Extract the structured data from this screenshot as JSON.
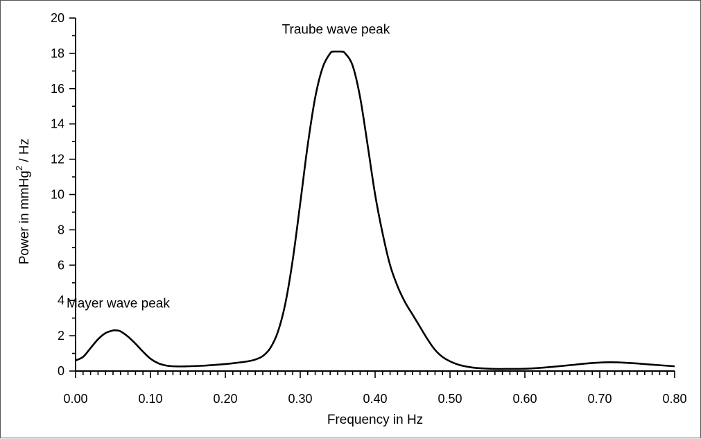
{
  "chart_data": {
    "type": "line",
    "title": "",
    "xlabel": "Frequency in Hz",
    "ylabel": "Power in mmHg",
    "ylabel_sup": "2",
    "ylabel_suffix": " / Hz",
    "xlim": [
      0,
      0.8
    ],
    "ylim": [
      0,
      20
    ],
    "xticks": [
      "0.00",
      "0.10",
      "0.20",
      "0.30",
      "0.40",
      "0.50",
      "0.60",
      "0.70",
      "0.80"
    ],
    "yticks": [
      "0",
      "2",
      "4",
      "6",
      "8",
      "10",
      "12",
      "14",
      "16",
      "18",
      "20"
    ],
    "grid": false,
    "legend": "none",
    "series": [
      {
        "x": [
          0.0,
          0.01,
          0.02,
          0.03,
          0.04,
          0.05,
          0.055,
          0.06,
          0.07,
          0.08,
          0.09,
          0.1,
          0.11,
          0.12,
          0.13,
          0.14,
          0.15,
          0.17,
          0.19,
          0.21,
          0.23,
          0.24,
          0.25,
          0.26,
          0.27,
          0.28,
          0.29,
          0.3,
          0.31,
          0.32,
          0.33,
          0.34,
          0.345,
          0.35,
          0.355,
          0.36,
          0.37,
          0.38,
          0.39,
          0.4,
          0.41,
          0.42,
          0.43,
          0.44,
          0.45,
          0.46,
          0.47,
          0.48,
          0.49,
          0.5,
          0.51,
          0.52,
          0.53,
          0.54,
          0.56,
          0.58,
          0.6,
          0.62,
          0.64,
          0.66,
          0.68,
          0.7,
          0.715,
          0.73,
          0.75,
          0.77,
          0.8
        ],
        "y": [
          0.6,
          0.8,
          1.3,
          1.8,
          2.15,
          2.3,
          2.3,
          2.25,
          1.95,
          1.55,
          1.1,
          0.7,
          0.45,
          0.32,
          0.27,
          0.26,
          0.27,
          0.3,
          0.36,
          0.44,
          0.55,
          0.65,
          0.85,
          1.3,
          2.2,
          3.8,
          6.3,
          9.5,
          12.8,
          15.5,
          17.2,
          18.0,
          18.1,
          18.1,
          18.1,
          18.0,
          17.3,
          15.5,
          12.8,
          10.0,
          7.8,
          6.0,
          4.8,
          3.9,
          3.2,
          2.5,
          1.8,
          1.2,
          0.8,
          0.55,
          0.38,
          0.27,
          0.2,
          0.16,
          0.12,
          0.12,
          0.13,
          0.18,
          0.25,
          0.33,
          0.42,
          0.48,
          0.5,
          0.48,
          0.43,
          0.36,
          0.27
        ],
        "color": "#000000"
      }
    ],
    "annotations": [
      {
        "text": "Traube wave peak",
        "x": 0.355,
        "y": 18.1
      },
      {
        "text": "Mayer wave peak",
        "x": 0.055,
        "y": 2.3
      }
    ]
  }
}
